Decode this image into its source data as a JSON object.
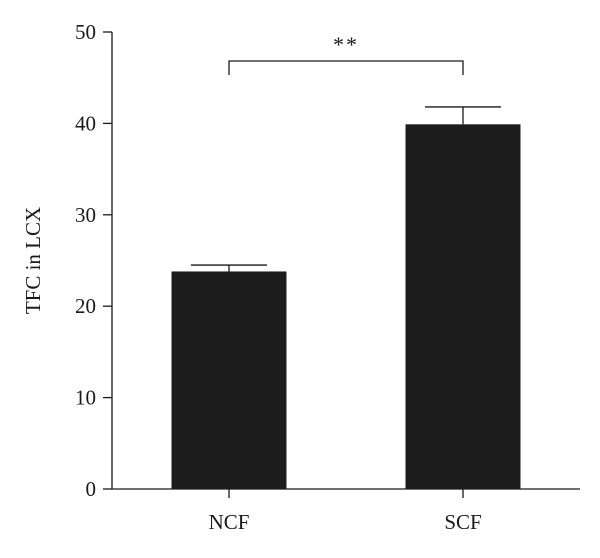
{
  "chart_data": {
    "type": "bar",
    "categories": [
      "NCF",
      "SCF"
    ],
    "values": [
      23.8,
      39.9
    ],
    "errors": [
      0.7,
      1.9
    ],
    "ylabel": "TFC in LCX",
    "ylim": [
      0,
      50
    ],
    "yticks": [
      0,
      10,
      20,
      30,
      40,
      50
    ],
    "grid": false,
    "bar_color": "#1c1c1c",
    "significance": {
      "between": [
        "NCF",
        "SCF"
      ],
      "label": "**"
    }
  }
}
